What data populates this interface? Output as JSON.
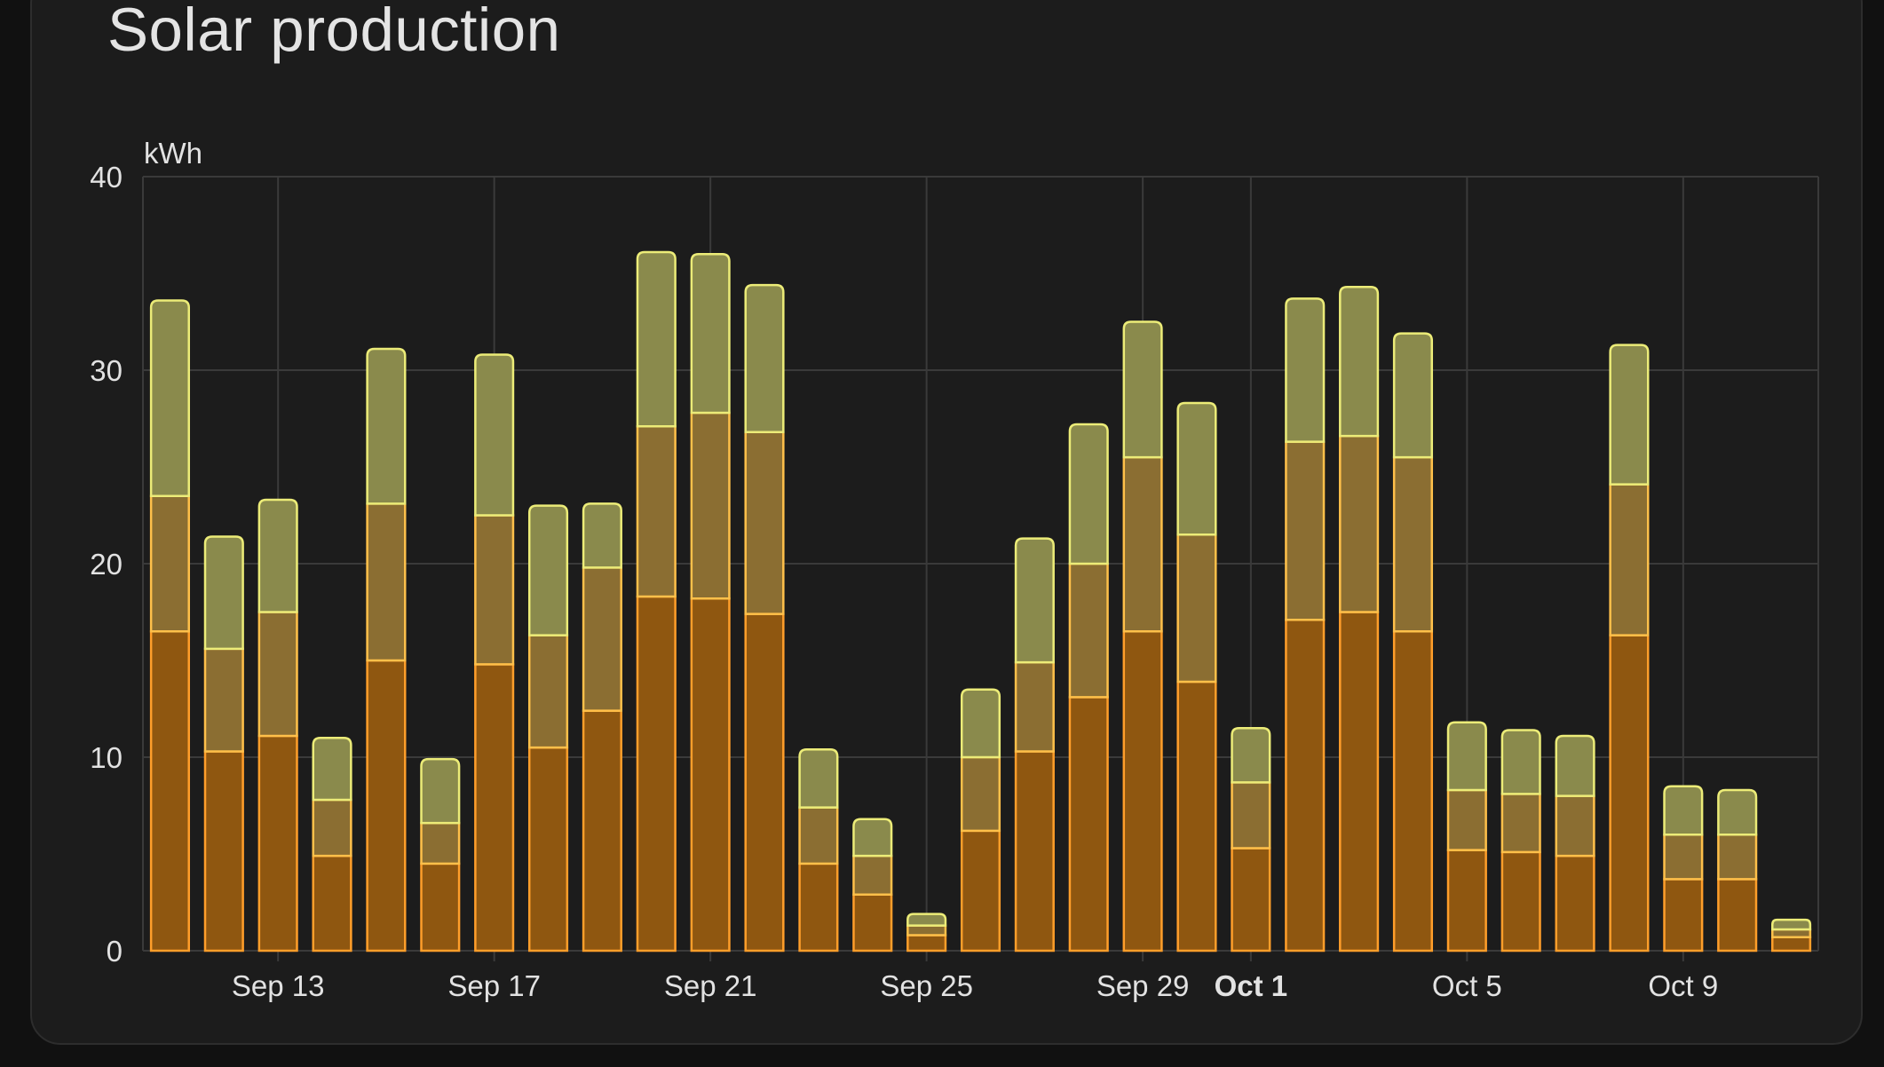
{
  "card": {
    "title": "Solar production"
  },
  "colors": {
    "background": "#1c1c1c",
    "grid": "#3a3a3a",
    "text": "#e2e2e2",
    "series": [
      {
        "fill": "#8f5710",
        "stroke": "#ff9e2a"
      },
      {
        "fill": "#8b6e32",
        "stroke": "#ffc04a"
      },
      {
        "fill": "#8a8a4c",
        "stroke": "#ecec78"
      }
    ]
  },
  "chart_data": {
    "type": "bar",
    "stacked": true,
    "title": "Solar production",
    "ylabel": "kWh",
    "xlabel": "",
    "ylim": [
      0,
      40
    ],
    "yticks": [
      0,
      10,
      20,
      30,
      40
    ],
    "grid": true,
    "categories": [
      "Sep 11",
      "Sep 12",
      "Sep 13",
      "Sep 14",
      "Sep 15",
      "Sep 16",
      "Sep 17",
      "Sep 18",
      "Sep 19",
      "Sep 20",
      "Sep 21",
      "Sep 22",
      "Sep 23",
      "Sep 24",
      "Sep 25",
      "Sep 26",
      "Sep 27",
      "Sep 28",
      "Sep 29",
      "Sep 30",
      "Oct 1",
      "Oct 2",
      "Oct 3",
      "Oct 4",
      "Oct 5",
      "Oct 6",
      "Oct 7",
      "Oct 8",
      "Oct 9",
      "Oct 10",
      "Oct 11"
    ],
    "xtick_labels": [
      {
        "category": "Sep 13",
        "label": "Sep 13",
        "bold": false
      },
      {
        "category": "Sep 17",
        "label": "Sep 17",
        "bold": false
      },
      {
        "category": "Sep 21",
        "label": "Sep 21",
        "bold": false
      },
      {
        "category": "Sep 25",
        "label": "Sep 25",
        "bold": false
      },
      {
        "category": "Sep 29",
        "label": "Sep 29",
        "bold": false
      },
      {
        "category": "Oct 1",
        "label": "Oct 1",
        "bold": true
      },
      {
        "category": "Oct 5",
        "label": "Oct 5",
        "bold": false
      },
      {
        "category": "Oct 9",
        "label": "Oct 9",
        "bold": false
      }
    ],
    "series": [
      {
        "values": [
          16.5,
          10.3,
          11.1,
          4.9,
          15.0,
          4.5,
          14.8,
          10.5,
          12.4,
          18.3,
          18.2,
          17.4,
          4.5,
          2.9,
          0.8,
          6.2,
          10.3,
          13.1,
          16.5,
          13.9,
          5.3,
          17.1,
          17.5,
          16.5,
          5.2,
          5.1,
          4.9,
          16.3,
          3.7,
          3.7,
          0.7
        ]
      },
      {
        "values": [
          7.0,
          5.3,
          6.4,
          2.9,
          8.1,
          2.1,
          7.7,
          5.8,
          7.4,
          8.8,
          9.6,
          9.4,
          2.9,
          2.0,
          0.5,
          3.8,
          4.6,
          6.9,
          9.0,
          7.6,
          3.4,
          9.2,
          9.1,
          9.0,
          3.1,
          3.0,
          3.1,
          7.8,
          2.3,
          2.3,
          0.4
        ]
      },
      {
        "values": [
          10.1,
          5.8,
          5.8,
          3.2,
          8.0,
          3.3,
          8.3,
          6.7,
          3.3,
          9.0,
          8.2,
          7.6,
          3.0,
          1.9,
          0.6,
          3.5,
          6.4,
          7.2,
          7.0,
          6.8,
          2.8,
          7.4,
          7.7,
          6.4,
          3.5,
          3.3,
          3.1,
          7.2,
          2.5,
          2.3,
          0.5
        ]
      }
    ]
  }
}
